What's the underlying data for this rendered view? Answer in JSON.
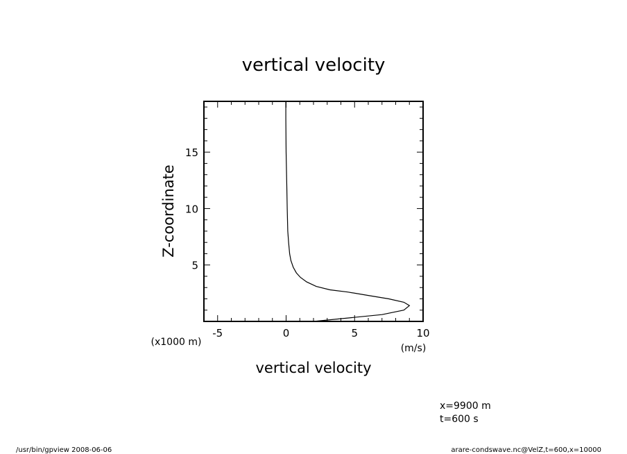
{
  "chart_data": {
    "type": "line",
    "title": "vertical velocity",
    "xlabel": "vertical velocity",
    "ylabel": "Z-coordinate",
    "x_unit": "(m/s)",
    "y_unit": "(x1000 m)",
    "xlim": [
      -6,
      10
    ],
    "ylim": [
      0,
      19.5
    ],
    "x_ticks": [
      "-5",
      "0",
      "5",
      "10"
    ],
    "y_ticks": [
      "5",
      "10",
      "15"
    ],
    "grid": false,
    "series": [
      {
        "x": [
          2.0,
          4.5,
          7.0,
          8.6,
          9.0,
          8.6,
          7.5,
          6.0,
          4.5,
          3.2,
          2.2,
          1.5,
          1.05,
          0.75,
          0.52,
          0.35,
          0.26,
          0.18,
          0.12,
          0.08,
          0.05,
          0.0,
          -0.02,
          -0.02
        ],
        "y": [
          0.0,
          0.3,
          0.6,
          1.0,
          1.4,
          1.7,
          2.0,
          2.3,
          2.6,
          2.8,
          3.1,
          3.5,
          3.9,
          4.3,
          4.8,
          5.4,
          6.0,
          7.0,
          8.0,
          10.0,
          12.0,
          15.0,
          18.0,
          19.5
        ]
      }
    ]
  },
  "annotations": {
    "position": "x=9900 m",
    "time": "t=600 s"
  },
  "footer": {
    "program": "/usr/bin/gpview   2008-06-06",
    "source": "arare-condswave.nc@VelZ,t=600,x=10000"
  }
}
